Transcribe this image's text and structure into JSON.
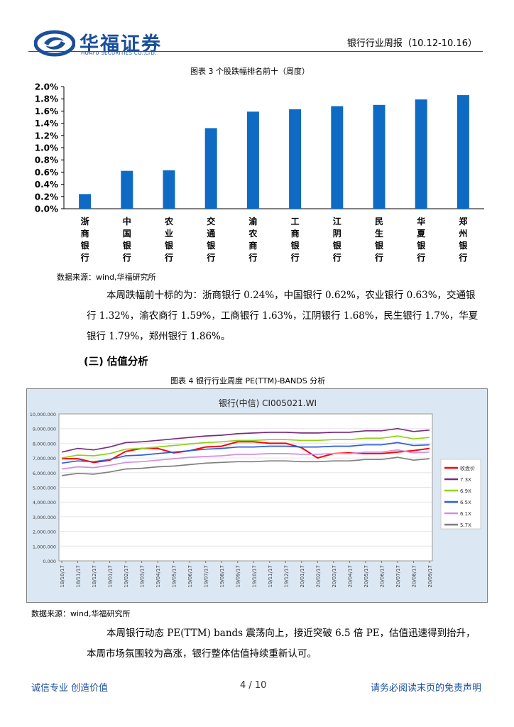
{
  "header": {
    "logo_cn": "华福证券",
    "logo_en": "HUAFU SECURITIES CO.,LTD.",
    "report_title": "银行行业周报（10.12-10.16）"
  },
  "figure3": {
    "caption": "图表 3 个股跌幅排名前十（周度）",
    "source": "数据来源：wind,华福研究所"
  },
  "chart_data": [
    {
      "type": "bar",
      "title": "",
      "categories": [
        "浙商银行",
        "中国银行",
        "农业银行",
        "交通银行",
        "渝农商行",
        "工商银行",
        "江阴银行",
        "民生银行",
        "华夏银行",
        "郑州银行"
      ],
      "values": [
        0.24,
        0.62,
        0.63,
        1.32,
        1.59,
        1.63,
        1.68,
        1.7,
        1.79,
        1.86
      ],
      "ytick_labels": [
        "2.0%",
        "1.8%",
        "1.6%",
        "1.4%",
        "1.2%",
        "1.0%",
        "0.8%",
        "0.6%",
        "0.4%",
        "0.2%",
        "0.0%"
      ],
      "ylim": [
        0,
        2.0
      ],
      "xlabel": "",
      "ylabel": "",
      "colors": {
        "bar": "#0e6ac3"
      }
    },
    {
      "type": "line",
      "title": "银行(中信) CI005021.WI",
      "x": [
        "18/10/17",
        "18/11/17",
        "18/12/17",
        "19/01/17",
        "19/02/17",
        "19/03/17",
        "19/04/17",
        "19/05/17",
        "19/06/17",
        "19/07/17",
        "19/08/17",
        "19/09/17",
        "19/10/17",
        "19/11/17",
        "19/12/17",
        "20/01/17",
        "20/02/17",
        "20/03/17",
        "20/04/17",
        "20/05/17",
        "20/06/17",
        "20/07/17",
        "20/08/17",
        "20/09/17"
      ],
      "ytick_labels": [
        "10,000.000",
        "9,000.000",
        "8,000.000",
        "7,000.000",
        "6,000.000",
        "5,000.000",
        "4,000.000",
        "3,000.000",
        "2,000.000",
        "1,000.000",
        "0.000"
      ],
      "ylim": [
        0,
        10000
      ],
      "series": [
        {
          "name": "收盘价",
          "color": "#ff0000",
          "values": [
            6950,
            6950,
            6700,
            6850,
            7450,
            7650,
            7650,
            7350,
            7500,
            7750,
            7800,
            8100,
            8100,
            8000,
            8000,
            7700,
            7000,
            7300,
            7350,
            7300,
            7300,
            7400,
            7500,
            7650
          ]
        },
        {
          "name": "7.3X",
          "color": "#7b2c7b",
          "values": [
            7400,
            7650,
            7550,
            7750,
            8050,
            8100,
            8200,
            8300,
            8400,
            8500,
            8550,
            8650,
            8700,
            8750,
            8750,
            8700,
            8700,
            8750,
            8750,
            8850,
            8850,
            9000,
            8800,
            8900
          ]
        },
        {
          "name": "6.9X",
          "color": "#8fd11a",
          "values": [
            7000,
            7200,
            7150,
            7300,
            7600,
            7650,
            7750,
            7850,
            7950,
            8050,
            8100,
            8200,
            8200,
            8250,
            8250,
            8200,
            8200,
            8250,
            8250,
            8350,
            8350,
            8500,
            8300,
            8400
          ]
        },
        {
          "name": "6.5X",
          "color": "#2f5fe0",
          "values": [
            6650,
            6800,
            6750,
            6900,
            7150,
            7200,
            7300,
            7400,
            7500,
            7600,
            7650,
            7750,
            7750,
            7800,
            7800,
            7750,
            7750,
            7800,
            7800,
            7900,
            7900,
            8050,
            7850,
            7900
          ]
        },
        {
          "name": "6.1X",
          "color": "#d08ee0",
          "values": [
            6250,
            6400,
            6350,
            6500,
            6700,
            6750,
            6850,
            6950,
            7050,
            7100,
            7150,
            7250,
            7250,
            7300,
            7300,
            7250,
            7250,
            7300,
            7300,
            7400,
            7400,
            7550,
            7350,
            7400
          ]
        },
        {
          "name": "5.7X",
          "color": "#7f7f7f",
          "values": [
            5800,
            5950,
            5900,
            6050,
            6250,
            6300,
            6400,
            6450,
            6550,
            6650,
            6700,
            6750,
            6750,
            6800,
            6800,
            6750,
            6750,
            6800,
            6800,
            6900,
            6900,
            7050,
            6850,
            6950
          ]
        }
      ]
    }
  ],
  "paragraph1": "本周跌幅前十标的为：浙商银行 0.24%，中国银行 0.62%，农业银行 0.63%，交通银行 1.32%，渝农商行 1.59%，工商银行 1.63%，江阴银行 1.68%，民生银行 1.7%，华夏银行 1.79%，郑州银行 1.86%。",
  "section3": {
    "heading": "(三) 估值分析"
  },
  "figure4": {
    "caption": "图表 4 银行行业周度 PE(TTM)-BANDS 分析",
    "source": "数据来源：wind,华福研究所"
  },
  "paragraph2": "本周银行动态 PE(TTM) bands 震荡向上，接近突破 6.5 倍 PE，估值迅速得到抬升，本周市场氛围较为高涨，银行整体估值持续重新认可。",
  "footer": {
    "left": "诚信专业 创造价值",
    "page": "4 / 10",
    "right": "请务必阅读末页的免责声明"
  },
  "colors": {
    "brand": "#1a4f9c",
    "bar": "#0e6ac3",
    "plot_bg": "#dbe7f3"
  }
}
